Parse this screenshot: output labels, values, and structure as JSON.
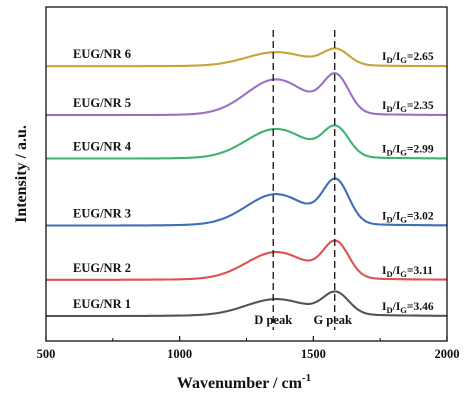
{
  "chart_data": {
    "type": "line",
    "xlabel_main": "Wavenumber / cm",
    "xlabel_sup": "-1",
    "ylabel": "Intensity / a.u.",
    "xlim": [
      500,
      2000
    ],
    "x_ticks": [
      "500",
      "1000",
      "1500",
      "2000"
    ],
    "y_ticks": "none",
    "grid": false,
    "d_peak_label": "D peak",
    "g_peak_label": "G peak",
    "d_peak_position": 1350,
    "g_peak_position": 1580,
    "series": [
      {
        "name": "EUG/NR 1",
        "color": "#555555",
        "ratio_prefix": "I",
        "ratio_sub1": "D",
        "ratio_mid": "/I",
        "ratio_sub2": "G",
        "ratio_value": "=3.46",
        "offset": 0.0,
        "d_height": 0.42,
        "g_height": 0.58,
        "baseline_rise": 0.05
      },
      {
        "name": "EUG/NR 2",
        "color": "#e0504f",
        "ratio_prefix": "I",
        "ratio_sub1": "D",
        "ratio_mid": "/I",
        "ratio_sub2": "G",
        "ratio_value": "=3.11",
        "offset": 1.0,
        "d_height": 0.72,
        "g_height": 0.95,
        "baseline_rise": 0.05
      },
      {
        "name": "EUG/NR 3",
        "color": "#3f6fb5",
        "ratio_prefix": "I",
        "ratio_sub1": "D",
        "ratio_mid": "/I",
        "ratio_sub2": "G",
        "ratio_value": "=3.02",
        "offset": 2.5,
        "d_height": 0.82,
        "g_height": 1.15,
        "baseline_rise": 0.05
      },
      {
        "name": "EUG/NR 4",
        "color": "#3cb371",
        "ratio_prefix": "I",
        "ratio_sub1": "D",
        "ratio_mid": "/I",
        "ratio_sub2": "G",
        "ratio_value": "=2.99",
        "offset": 4.35,
        "d_height": 0.78,
        "g_height": 0.78,
        "baseline_rise": 0.04
      },
      {
        "name": "EUG/NR 5",
        "color": "#9a6fc7",
        "ratio_prefix": "I",
        "ratio_sub1": "D",
        "ratio_mid": "/I",
        "ratio_sub2": "G",
        "ratio_value": "=2.35",
        "offset": 5.55,
        "d_height": 0.95,
        "g_height": 1.0,
        "baseline_rise": 0.04
      },
      {
        "name": "EUG/NR 6",
        "color": "#c9a23a",
        "ratio_prefix": "I",
        "ratio_sub1": "D",
        "ratio_mid": "/I",
        "ratio_sub2": "G",
        "ratio_value": "=2.65",
        "offset": 6.9,
        "d_height": 0.36,
        "g_height": 0.42,
        "baseline_rise": 0.03
      }
    ]
  }
}
